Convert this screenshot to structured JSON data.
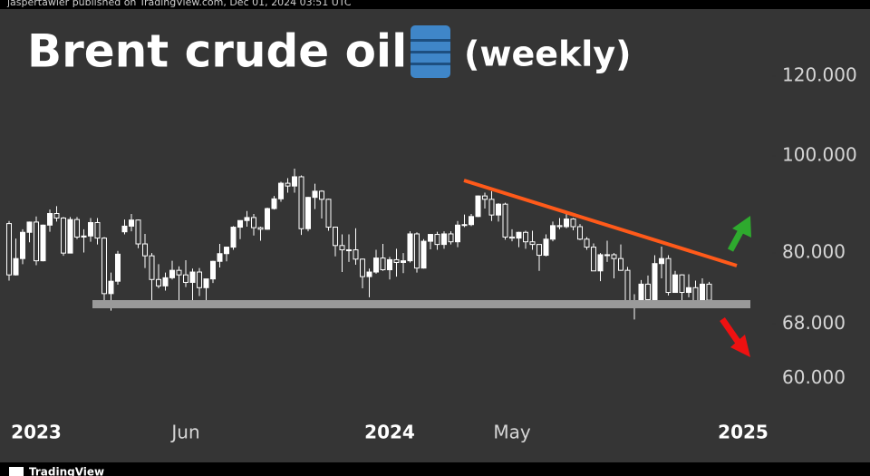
{
  "header": "jaspertawler published on TradingView.com, Dec 01, 2024 03:51 UTC",
  "footer": "TradingView",
  "chart_data": {
    "type": "candlestick",
    "title": "Brent crude oil",
    "subtitle": "(weekly)",
    "categories": [
      null,
      null,
      null,
      null,
      "2023",
      null,
      null,
      null,
      null,
      null,
      null,
      null,
      null,
      null,
      null,
      null,
      null,
      null,
      null,
      null,
      null,
      null,
      null,
      null,
      null,
      null,
      "Jun",
      null,
      null,
      null,
      null,
      null,
      null,
      null,
      null,
      null,
      null,
      null,
      null,
      null,
      null,
      null,
      null,
      null,
      null,
      null,
      null,
      null,
      null,
      null,
      null,
      null,
      null,
      null,
      null,
      null,
      "2024",
      null,
      null,
      null,
      null,
      null,
      null,
      null,
      null,
      null,
      null,
      null,
      null,
      null,
      null,
      null,
      null,
      null,
      "May",
      null,
      null,
      null,
      null,
      null,
      null,
      null,
      null,
      null,
      null,
      null,
      null,
      null,
      null,
      null,
      null,
      null,
      null,
      null,
      null,
      null,
      null,
      null,
      null,
      null,
      null,
      null,
      null,
      null,
      null,
      null,
      null,
      null,
      "2025"
    ],
    "open": [
      85.6,
      76.1,
      79.0,
      83.9,
      85.9,
      78.6,
      85.3,
      87.6,
      86.7,
      80.0,
      86.4,
      83.0,
      83.2,
      85.8,
      82.8,
      72.9,
      75.0,
      84.0,
      85.1,
      86.3,
      81.7,
      79.5,
      75.3,
      74.2,
      75.6,
      76.9,
      76.1,
      74.8,
      76.6,
      73.9,
      75.4,
      78.5,
      79.9,
      81.1,
      84.9,
      86.2,
      86.8,
      84.8,
      84.5,
      88.6,
      90.6,
      93.9,
      93.3,
      95.3,
      84.6,
      90.9,
      92.2,
      90.5,
      84.9,
      81.4,
      80.6,
      80.6,
      78.9,
      75.8,
      76.6,
      79.1,
      77.0,
      78.8,
      78.3,
      78.6,
      83.6,
      77.3,
      82.2,
      83.5,
      81.6,
      83.6,
      82.1,
      85.3,
      85.4,
      87.0,
      91.2,
      90.5,
      87.3,
      89.5,
      83.0,
      82.8,
      83.9,
      82.1,
      81.6,
      79.6,
      82.6,
      85.2,
      85.0,
      86.5,
      85.0,
      82.6,
      81.1,
      76.8,
      79.7,
      79.7,
      79.0,
      76.9,
      71.1,
      71.6,
      74.5,
      71.9,
      78.1,
      79.0,
      73.1,
      76.1,
      73.1,
      73.9,
      71.0,
      74.5,
      null,
      null,
      null,
      null,
      null
    ],
    "high": [
      86.1,
      82.7,
      84.5,
      86.0,
      87.0,
      85.4,
      88.4,
      89.1,
      86.9,
      86.9,
      86.9,
      84.5,
      86.7,
      86.7,
      83.0,
      76.5,
      80.4,
      86.4,
      87.5,
      86.4,
      83.6,
      80.0,
      78.0,
      76.5,
      78.6,
      77.6,
      78.7,
      77.2,
      77.3,
      75.4,
      78.6,
      81.7,
      81.2,
      85.1,
      86.2,
      88.1,
      87.5,
      85.0,
      88.8,
      91.2,
      94.2,
      95.0,
      97.1,
      95.6,
      91.0,
      93.8,
      92.4,
      90.6,
      85.0,
      83.5,
      83.5,
      84.7,
      79.0,
      77.2,
      80.6,
      81.7,
      79.3,
      80.8,
      80.0,
      84.1,
      83.9,
      82.6,
      83.6,
      84.0,
      84.1,
      84.1,
      86.1,
      87.4,
      87.5,
      91.3,
      91.9,
      92.2,
      89.7,
      89.8,
      84.5,
      84.0,
      84.2,
      84.2,
      81.6,
      83.5,
      86.0,
      86.7,
      88.0,
      86.7,
      85.5,
      83.0,
      81.8,
      80.0,
      82.3,
      80.0,
      81.6,
      77.5,
      72.8,
      75.2,
      76.0,
      79.6,
      81.2,
      79.6,
      76.8,
      76.2,
      76.2,
      75.1,
      75.5,
      74.9,
      null,
      null,
      null,
      null,
      null
    ],
    "low": [
      75.1,
      76.0,
      78.0,
      82.0,
      77.8,
      78.5,
      84.0,
      86.0,
      79.5,
      80.0,
      82.6,
      80.1,
      82.1,
      81.6,
      71.4,
      70.1,
      74.4,
      83.5,
      84.1,
      80.9,
      77.3,
      71.3,
      73.8,
      73.4,
      75.3,
      71.4,
      74.0,
      71.6,
      72.5,
      71.7,
      74.7,
      77.4,
      78.5,
      80.6,
      82.6,
      85.0,
      83.3,
      82.3,
      84.4,
      88.4,
      90.0,
      91.9,
      91.9,
      83.4,
      84.1,
      88.5,
      86.6,
      84.2,
      79.4,
      76.6,
      78.4,
      77.9,
      73.8,
      72.3,
      76.3,
      76.8,
      75.3,
      75.8,
      76.4,
      78.3,
      76.5,
      77.2,
      80.7,
      80.6,
      80.8,
      81.6,
      81.1,
      84.9,
      85.1,
      86.9,
      88.6,
      86.1,
      86.0,
      82.5,
      82.2,
      81.1,
      80.8,
      80.6,
      76.8,
      79.4,
      82.2,
      84.5,
      84.7,
      84.3,
      82.4,
      80.6,
      76.8,
      75.0,
      78.4,
      75.5,
      76.8,
      70.5,
      68.7,
      71.3,
      70.9,
      71.7,
      75.5,
      72.6,
      73.1,
      71.0,
      72.3,
      70.8,
      70.9,
      71.3,
      null,
      null,
      null,
      null,
      null
    ],
    "close": [
      76.1,
      79.0,
      83.9,
      85.9,
      78.6,
      85.3,
      87.6,
      86.7,
      80.0,
      86.4,
      83.0,
      83.2,
      85.8,
      82.8,
      72.9,
      75.0,
      79.8,
      85.1,
      86.3,
      81.7,
      79.5,
      75.3,
      74.2,
      75.6,
      76.9,
      76.1,
      74.8,
      76.6,
      73.9,
      75.4,
      78.5,
      79.9,
      81.1,
      84.9,
      86.2,
      86.8,
      84.8,
      84.5,
      88.6,
      90.6,
      93.9,
      93.3,
      95.3,
      84.6,
      90.9,
      92.2,
      90.5,
      84.9,
      81.4,
      80.6,
      80.6,
      78.9,
      75.8,
      76.6,
      79.1,
      77.0,
      78.8,
      78.3,
      78.6,
      83.6,
      77.3,
      82.2,
      83.5,
      81.6,
      83.6,
      82.1,
      85.3,
      85.4,
      87.0,
      91.2,
      90.5,
      87.3,
      89.5,
      83.0,
      82.8,
      83.9,
      82.1,
      81.6,
      79.6,
      82.6,
      85.2,
      85.0,
      86.5,
      85.0,
      82.6,
      81.1,
      76.8,
      79.7,
      79.7,
      79.0,
      76.9,
      71.1,
      71.6,
      74.5,
      71.9,
      78.1,
      79.0,
      73.1,
      76.1,
      73.1,
      73.9,
      71.0,
      74.5,
      71.8,
      null,
      null,
      null,
      null,
      null
    ],
    "up_color": "#ffffff",
    "down_color": "#353535",
    "wick_color": "#ffffff",
    "log_scale": true,
    "ylim": [
      55.5,
      140
    ],
    "yticks": [
      {
        "value": 120,
        "label": "120.000"
      },
      {
        "value": 100,
        "label": "100.000"
      },
      {
        "value": 80,
        "label": "80.000"
      },
      {
        "value": 68,
        "label": "68.000"
      },
      {
        "value": 60,
        "label": "60.000"
      }
    ]
  }
}
